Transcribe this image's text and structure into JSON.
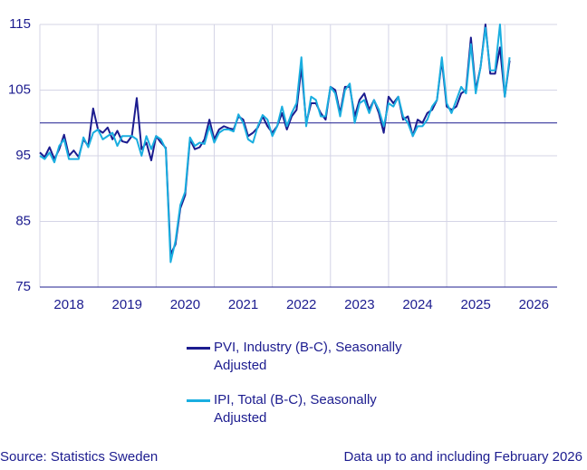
{
  "chart_data": {
    "type": "line",
    "x": [
      2018,
      2018.083,
      2018.167,
      2018.25,
      2018.333,
      2018.417,
      2018.5,
      2018.583,
      2018.667,
      2018.75,
      2018.833,
      2018.917,
      2019,
      2019.083,
      2019.167,
      2019.25,
      2019.333,
      2019.417,
      2019.5,
      2019.583,
      2019.667,
      2019.75,
      2019.833,
      2019.917,
      2020,
      2020.083,
      2020.167,
      2020.25,
      2020.333,
      2020.417,
      2020.5,
      2020.583,
      2020.667,
      2020.75,
      2020.833,
      2020.917,
      2021,
      2021.083,
      2021.167,
      2021.25,
      2021.333,
      2021.417,
      2021.5,
      2021.583,
      2021.667,
      2021.75,
      2021.833,
      2021.917,
      2022,
      2022.083,
      2022.167,
      2022.25,
      2022.333,
      2022.417,
      2022.5,
      2022.583,
      2022.667,
      2022.75,
      2022.833,
      2022.917,
      2023,
      2023.083,
      2023.167,
      2023.25,
      2023.333,
      2023.417,
      2023.5,
      2023.583,
      2023.667,
      2023.75,
      2023.833,
      2023.917,
      2024,
      2024.083,
      2024.167,
      2024.25,
      2024.333,
      2024.417,
      2024.5,
      2024.583,
      2024.667,
      2024.75,
      2024.833,
      2024.917,
      2025,
      2025.083,
      2025.167,
      2025.25,
      2025.333,
      2025.417,
      2025.5,
      2025.583,
      2025.667,
      2025.75,
      2025.833,
      2025.917,
      2026,
      2026.083
    ],
    "series": [
      {
        "name": "PVI, Industry (B-C), Seasonally Adjusted",
        "color": "#1c1c8f",
        "values": [
          95.5,
          94.8,
          96.3,
          94.5,
          96.0,
          98.2,
          95.0,
          95.8,
          94.8,
          97.5,
          96.5,
          102.2,
          99,
          98.5,
          99.3,
          97.5,
          98.8,
          97.2,
          97,
          98,
          103.8,
          96,
          97,
          94.3,
          98,
          97,
          96.2,
          80,
          81.5,
          87,
          89,
          97.5,
          96,
          96.3,
          97.5,
          100.5,
          97.5,
          99,
          99.5,
          99.2,
          99,
          101,
          100.5,
          98,
          98.5,
          99.3,
          101,
          99.5,
          98.5,
          99.5,
          101.5,
          99,
          101,
          102,
          108.5,
          100,
          103,
          103,
          101.5,
          100.5,
          105.5,
          105,
          101.5,
          105.5,
          105.5,
          101,
          103.5,
          104.5,
          102,
          103.5,
          101.5,
          98.5,
          104,
          103,
          104,
          100.5,
          101,
          98,
          100.5,
          100,
          101.5,
          102,
          103.5,
          109.5,
          102.5,
          102,
          102.5,
          104.5,
          105,
          113,
          105,
          108.5,
          115,
          107.5,
          107.5,
          111.5,
          104,
          109.5
        ]
      },
      {
        "name": "IPI, Total (B-C), Seasonally Adjusted",
        "color": "#1aaee0",
        "values": [
          95,
          94.5,
          95.5,
          94,
          96.5,
          97.5,
          94.5,
          94.5,
          94.5,
          97.8,
          96.3,
          98.5,
          99,
          97.5,
          98,
          98.5,
          96.5,
          98,
          98,
          98,
          97.5,
          95,
          98,
          96,
          98,
          97.5,
          96,
          78.8,
          82,
          87.5,
          89.5,
          97.8,
          96.5,
          97,
          96.8,
          99.5,
          97,
          98.5,
          99,
          99,
          98.7,
          101.3,
          100,
          97.5,
          97,
          99.5,
          101.2,
          100.5,
          98,
          99.5,
          102.5,
          99.5,
          101.5,
          103,
          110,
          99.5,
          104,
          103.5,
          101,
          101,
          105.5,
          104.5,
          101,
          105,
          106,
          100,
          103,
          103.5,
          101.5,
          103.5,
          102,
          99.5,
          103,
          102.5,
          104,
          101,
          100,
          98,
          99.5,
          99.5,
          100.5,
          102.5,
          103.5,
          110,
          103,
          101.5,
          103.5,
          105.5,
          104.5,
          112,
          104.5,
          108.5,
          114.5,
          108,
          108,
          115,
          104,
          110
        ]
      }
    ],
    "xlim": [
      2018,
      2026.9
    ],
    "xticks": [
      {
        "value": 2018.5,
        "label": "2018"
      },
      {
        "value": 2019.5,
        "label": "2019"
      },
      {
        "value": 2020.5,
        "label": "2020"
      },
      {
        "value": 2021.5,
        "label": "2021"
      },
      {
        "value": 2022.5,
        "label": "2022"
      },
      {
        "value": 2023.5,
        "label": "2023"
      },
      {
        "value": 2024.5,
        "label": "2024"
      },
      {
        "value": 2025.5,
        "label": "2025"
      },
      {
        "value": 2026.5,
        "label": "2026"
      }
    ],
    "ylim": [
      75,
      115
    ],
    "yticks": [
      75,
      85,
      95,
      105,
      115
    ],
    "hline": 100,
    "grid": true,
    "source": "Source: Statistics Sweden",
    "note": "Data up to and including February 2026"
  }
}
